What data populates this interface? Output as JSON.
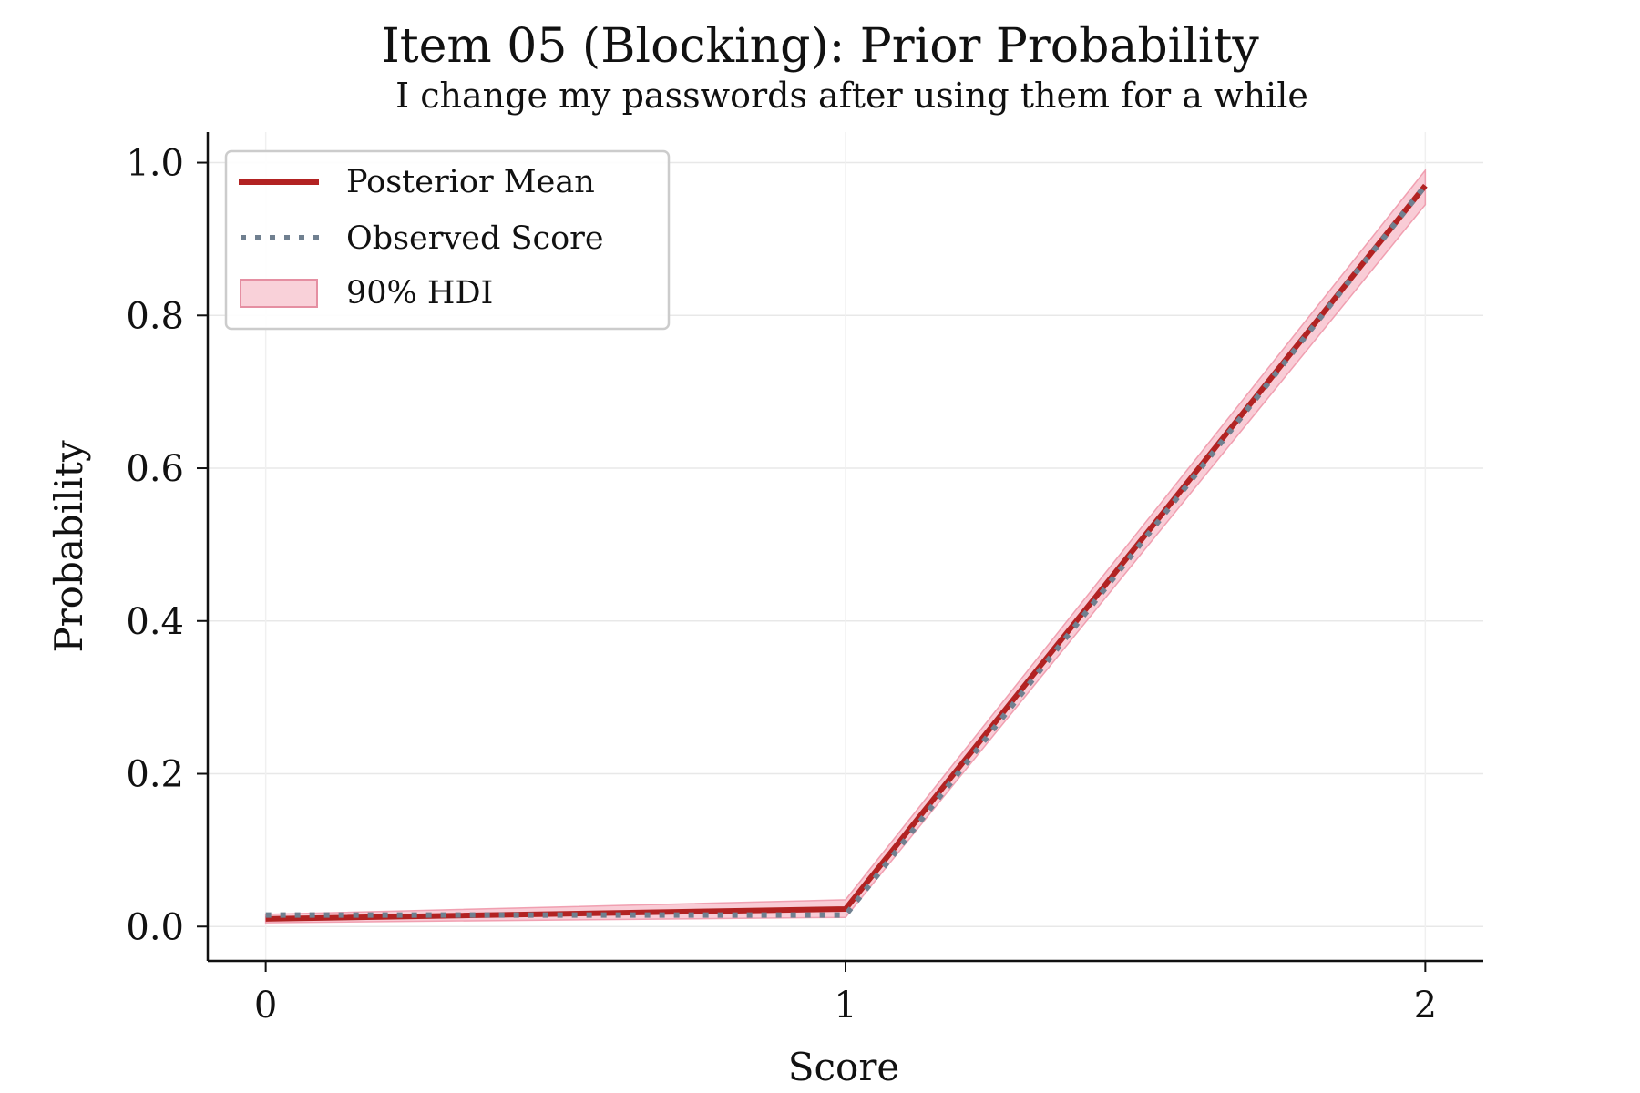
{
  "chart_data": {
    "type": "line",
    "title": "Item 05 (Blocking): Prior Probability",
    "subtitle": "I change my passwords after using them for a while",
    "xlabel": "Score",
    "ylabel": "Probability",
    "x": [
      0,
      1,
      2
    ],
    "x_ticks": [
      "0",
      "1",
      "2"
    ],
    "y_ticks": [
      "0.0",
      "0.2",
      "0.4",
      "0.6",
      "0.8",
      "1.0"
    ],
    "xlim": [
      -0.1,
      2.1
    ],
    "ylim": [
      -0.045,
      1.04
    ],
    "grid": true,
    "legend_position": "top-left",
    "series": [
      {
        "name": "Posterior Mean",
        "style": "solid",
        "color": "#b22222",
        "values": [
          0.01,
          0.023,
          0.97
        ]
      },
      {
        "name": "Observed Score",
        "style": "dotted",
        "color": "#708090",
        "values": [
          0.015,
          0.015,
          0.97
        ]
      }
    ],
    "band": {
      "name": "90% HDI",
      "color": "#f4a3b4",
      "lower": [
        0.005,
        0.012,
        0.945
      ],
      "upper": [
        0.016,
        0.035,
        0.99
      ]
    }
  }
}
